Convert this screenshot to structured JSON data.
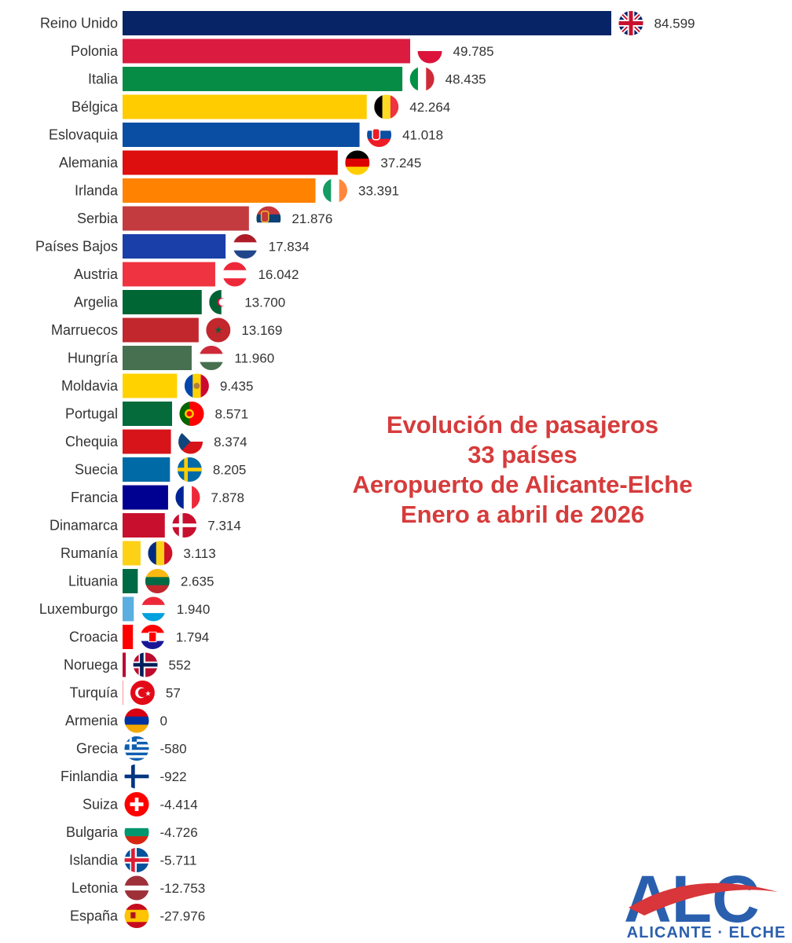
{
  "chart_data": {
    "type": "bar",
    "orientation": "horizontal",
    "title_lines": [
      "Evolución de pasajeros",
      "33 países",
      "Aeropuerto de Alicante-Elche",
      "Enero a abril de 2026"
    ],
    "categories": [
      "Reino Unido",
      "Polonia",
      "Italia",
      "Bélgica",
      "Eslovaquia",
      "Alemania",
      "Irlanda",
      "Serbia",
      "Países Bajos",
      "Austria",
      "Argelia",
      "Marruecos",
      "Hungría",
      "Moldavia",
      "Portugal",
      "Chequia",
      "Suecia",
      "Francia",
      "Dinamarca",
      "Rumanía",
      "Lituania",
      "Luxemburgo",
      "Croacia",
      "Noruega",
      "Turquía",
      "Armenia",
      "Grecia",
      "Finlandia",
      "Suiza",
      "Bulgaria",
      "Islandia",
      "Letonia",
      "España"
    ],
    "values": [
      84599,
      49785,
      48435,
      42264,
      41018,
      37245,
      33391,
      21876,
      17834,
      16042,
      13700,
      13169,
      11960,
      9435,
      8571,
      8374,
      8205,
      7878,
      7314,
      3113,
      2635,
      1940,
      1794,
      552,
      57,
      0,
      -580,
      -922,
      -4414,
      -4726,
      -5711,
      -12753,
      -27976
    ],
    "value_labels": [
      "84.599",
      "49.785",
      "48.435",
      "42.264",
      "41.018",
      "37.245",
      "33.391",
      "21.876",
      "17.834",
      "16.042",
      "13.700",
      "13.169",
      "11.960",
      "9.435",
      "8.571",
      "8.374",
      "8.205",
      "7.878",
      "7.314",
      "3.113",
      "2.635",
      "1.940",
      "1.794",
      "552",
      "57",
      "0",
      "-580",
      "-922",
      "-4.414",
      "-4.726",
      "-5.711",
      "-12.753",
      "-27.976"
    ],
    "bar_colors": [
      "#062466",
      "#dc1b40",
      "#078c46",
      "#ffcc00",
      "#0a4ea3",
      "#dd0f0f",
      "#ff8200",
      "#c43b3f",
      "#1b3fa8",
      "#ef3340",
      "#006633",
      "#c1272d",
      "#477050",
      "#ffd200",
      "#066b3a",
      "#d7141a",
      "#006aa7",
      "#000091",
      "#c8102e",
      "#fcd116",
      "#006a44",
      "#5aaee0",
      "#ff0000",
      "#ba0c2f",
      "#e30a17",
      "#d90012",
      "#0d5eaf",
      "#003580",
      "#ff0000",
      "#00966e",
      "#02529c",
      "#9e3039",
      "#c60b1e"
    ],
    "flags": [
      "uk-flag-icon",
      "poland-flag-icon",
      "italy-flag-icon",
      "belgium-flag-icon",
      "slovakia-flag-icon",
      "germany-flag-icon",
      "ireland-flag-icon",
      "serbia-flag-icon",
      "netherlands-flag-icon",
      "austria-flag-icon",
      "algeria-flag-icon",
      "morocco-flag-icon",
      "hungary-flag-icon",
      "moldova-flag-icon",
      "portugal-flag-icon",
      "czechia-flag-icon",
      "sweden-flag-icon",
      "france-flag-icon",
      "denmark-flag-icon",
      "romania-flag-icon",
      "lithuania-flag-icon",
      "luxembourg-flag-icon",
      "croatia-flag-icon",
      "norway-flag-icon",
      "turkey-flag-icon",
      "armenia-flag-icon",
      "greece-flag-icon",
      "finland-flag-icon",
      "switzerland-flag-icon",
      "bulgaria-flag-icon",
      "iceland-flag-icon",
      "latvia-flag-icon",
      "spain-flag-icon"
    ],
    "grid": false,
    "legend": "none"
  },
  "logo": {
    "letters": "ALC",
    "text": "ALICANTE · ELCHE",
    "colors": {
      "red": "#d8363a",
      "blue": "#2a5fae"
    }
  },
  "colors": {
    "title": "#d63b3b",
    "text": "#333333"
  }
}
